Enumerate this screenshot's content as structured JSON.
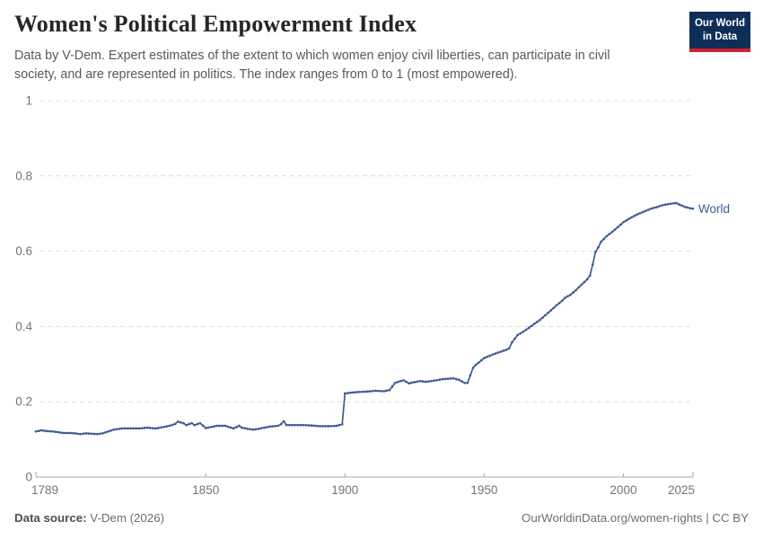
{
  "header": {
    "title": "Women's Political Empowerment Index",
    "subtitle_lines": [
      "Data by V-Dem. Expert estimates of the extent to which women enjoy civil liberties, can participate in civil",
      "society, and are represented in politics. The index ranges from 0 to 1 (most empowered)."
    ],
    "logo": {
      "line1": "Our World",
      "line2": "in Data",
      "bg_color": "#0f2e57",
      "accent_color": "#ce2336"
    }
  },
  "footer": {
    "source_label": "Data source:",
    "source_value": " V-Dem (2026)",
    "right_text": "OurWorldinData.org/women-rights | CC BY"
  },
  "colors": {
    "series_line": "#3d5c8f",
    "grid": "#dcdcdc",
    "axis": "#a8a8a8",
    "tick_label": "#737373"
  },
  "chart_data": {
    "type": "line",
    "title": "Women's Political Empowerment Index",
    "xlabel": "",
    "ylabel": "",
    "xlim": [
      1789,
      2025
    ],
    "ylim": [
      0,
      1
    ],
    "x_ticks": [
      1789,
      1850,
      1900,
      1950,
      2000,
      2025
    ],
    "y_ticks": [
      0,
      0.2,
      0.4,
      0.6,
      0.8,
      1
    ],
    "y_tick_labels": [
      "0",
      "0.2",
      "0.4",
      "0.6",
      "0.8",
      "1"
    ],
    "grid": "horizontal-dashed",
    "legend_position": "end-of-line",
    "series": [
      {
        "name": "World",
        "color": "#3d5c8f",
        "points": [
          [
            1789,
            0.121
          ],
          [
            1791,
            0.124
          ],
          [
            1793,
            0.122
          ],
          [
            1795,
            0.121
          ],
          [
            1797,
            0.119
          ],
          [
            1799,
            0.117
          ],
          [
            1801,
            0.117
          ],
          [
            1803,
            0.116
          ],
          [
            1805,
            0.114
          ],
          [
            1807,
            0.116
          ],
          [
            1809,
            0.115
          ],
          [
            1811,
            0.114
          ],
          [
            1813,
            0.116
          ],
          [
            1815,
            0.121
          ],
          [
            1817,
            0.126
          ],
          [
            1820,
            0.129
          ],
          [
            1823,
            0.129
          ],
          [
            1826,
            0.129
          ],
          [
            1829,
            0.131
          ],
          [
            1832,
            0.129
          ],
          [
            1835,
            0.133
          ],
          [
            1837,
            0.136
          ],
          [
            1839,
            0.141
          ],
          [
            1840,
            0.147
          ],
          [
            1842,
            0.143
          ],
          [
            1843,
            0.138
          ],
          [
            1845,
            0.143
          ],
          [
            1846,
            0.138
          ],
          [
            1848,
            0.143
          ],
          [
            1850,
            0.13
          ],
          [
            1852,
            0.133
          ],
          [
            1854,
            0.136
          ],
          [
            1857,
            0.136
          ],
          [
            1860,
            0.129
          ],
          [
            1862,
            0.136
          ],
          [
            1863,
            0.131
          ],
          [
            1865,
            0.128
          ],
          [
            1867,
            0.126
          ],
          [
            1869,
            0.128
          ],
          [
            1871,
            0.131
          ],
          [
            1873,
            0.134
          ],
          [
            1876,
            0.136
          ],
          [
            1877,
            0.14
          ],
          [
            1878,
            0.148
          ],
          [
            1879,
            0.138
          ],
          [
            1882,
            0.138
          ],
          [
            1885,
            0.138
          ],
          [
            1888,
            0.137
          ],
          [
            1891,
            0.135
          ],
          [
            1894,
            0.135
          ],
          [
            1897,
            0.136
          ],
          [
            1899,
            0.14
          ],
          [
            1900,
            0.222
          ],
          [
            1902,
            0.224
          ],
          [
            1905,
            0.226
          ],
          [
            1908,
            0.227
          ],
          [
            1911,
            0.229
          ],
          [
            1914,
            0.228
          ],
          [
            1916,
            0.231
          ],
          [
            1917,
            0.24
          ],
          [
            1918,
            0.25
          ],
          [
            1920,
            0.255
          ],
          [
            1921,
            0.257
          ],
          [
            1923,
            0.249
          ],
          [
            1925,
            0.252
          ],
          [
            1927,
            0.255
          ],
          [
            1929,
            0.253
          ],
          [
            1931,
            0.255
          ],
          [
            1933,
            0.257
          ],
          [
            1935,
            0.26
          ],
          [
            1937,
            0.261
          ],
          [
            1939,
            0.262
          ],
          [
            1941,
            0.258
          ],
          [
            1943,
            0.25
          ],
          [
            1944,
            0.25
          ],
          [
            1945,
            0.27
          ],
          [
            1946,
            0.29
          ],
          [
            1947,
            0.298
          ],
          [
            1948,
            0.304
          ],
          [
            1950,
            0.316
          ],
          [
            1952,
            0.322
          ],
          [
            1954,
            0.328
          ],
          [
            1956,
            0.333
          ],
          [
            1958,
            0.338
          ],
          [
            1959,
            0.342
          ],
          [
            1960,
            0.358
          ],
          [
            1962,
            0.377
          ],
          [
            1964,
            0.386
          ],
          [
            1966,
            0.396
          ],
          [
            1968,
            0.407
          ],
          [
            1970,
            0.417
          ],
          [
            1972,
            0.43
          ],
          [
            1974,
            0.443
          ],
          [
            1976,
            0.456
          ],
          [
            1978,
            0.468
          ],
          [
            1979,
            0.476
          ],
          [
            1981,
            0.484
          ],
          [
            1983,
            0.497
          ],
          [
            1985,
            0.511
          ],
          [
            1987,
            0.525
          ],
          [
            1988,
            0.535
          ],
          [
            1989,
            0.565
          ],
          [
            1990,
            0.598
          ],
          [
            1991,
            0.61
          ],
          [
            1992,
            0.625
          ],
          [
            1994,
            0.64
          ],
          [
            1996,
            0.651
          ],
          [
            1998,
            0.664
          ],
          [
            2000,
            0.677
          ],
          [
            2002,
            0.686
          ],
          [
            2004,
            0.694
          ],
          [
            2006,
            0.701
          ],
          [
            2008,
            0.707
          ],
          [
            2010,
            0.713
          ],
          [
            2012,
            0.717
          ],
          [
            2014,
            0.722
          ],
          [
            2016,
            0.725
          ],
          [
            2018,
            0.727
          ],
          [
            2019,
            0.728
          ],
          [
            2020,
            0.724
          ],
          [
            2021,
            0.721
          ],
          [
            2022,
            0.718
          ],
          [
            2023,
            0.716
          ],
          [
            2024,
            0.714
          ],
          [
            2025,
            0.713
          ]
        ]
      }
    ]
  }
}
